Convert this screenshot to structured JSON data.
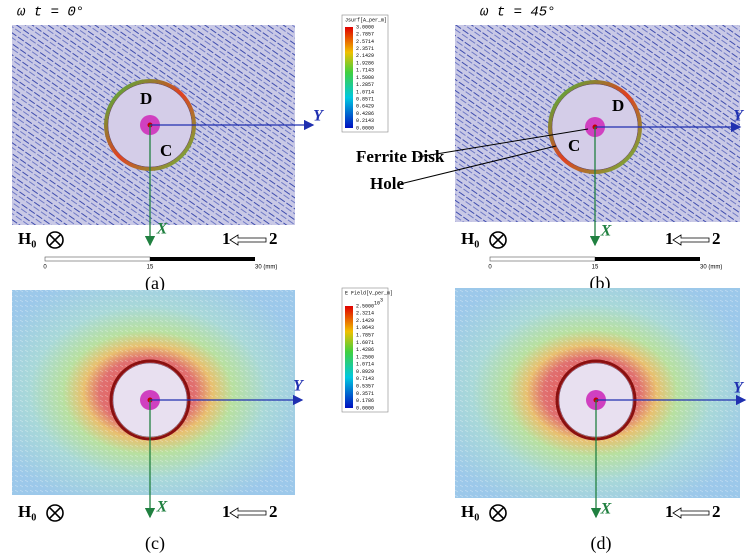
{
  "panels": [
    {
      "label": "(a)",
      "phase": "ω t = 0°",
      "point_d": "D",
      "point_c": "C",
      "axis_x": "X",
      "axis_y": "Y",
      "field": "H₀",
      "port_from": "1",
      "port_to": "2"
    },
    {
      "label": "(b)",
      "phase": "ω t = 45°",
      "point_d": "D",
      "point_c": "C",
      "axis_x": "X",
      "axis_y": "Y",
      "field": "H₀",
      "port_from": "1",
      "port_to": "2"
    },
    {
      "label": "(c)",
      "axis_x": "X",
      "axis_y": "Y",
      "field": "H₀",
      "port_from": "1",
      "port_to": "2"
    },
    {
      "label": "(d)",
      "axis_x": "X",
      "axis_y": "Y",
      "field": "H₀",
      "port_from": "1",
      "port_to": "2"
    }
  ],
  "legends": [
    {
      "title": "Jsurf[A_per_m]",
      "values": [
        "3.0000",
        "2.7857",
        "2.5714",
        "2.3571",
        "2.1429",
        "1.9286",
        "1.7143",
        "1.5000",
        "1.2857",
        "1.0714",
        "0.8571",
        "0.6429",
        "0.4286",
        "0.2143",
        "0.0000"
      ]
    },
    {
      "title": "E Field[V_per_m]",
      "exponent_base": "10",
      "exponent": "3",
      "values": [
        "2.5000",
        "2.3214",
        "2.1429",
        "1.9643",
        "1.7857",
        "1.6071",
        "1.4286",
        "1.2500",
        "1.0714",
        "0.8929",
        "0.7143",
        "0.5357",
        "0.3571",
        "0.1786",
        "0.0000"
      ]
    }
  ],
  "scale_bars": [
    {
      "ticks": [
        "0",
        "15",
        "30 (mm)"
      ]
    },
    {
      "ticks": [
        "0",
        "15",
        "30 (mm)"
      ]
    }
  ],
  "callouts": {
    "ferrite_disk": "Ferrite Disk",
    "hole": "Hole"
  }
}
